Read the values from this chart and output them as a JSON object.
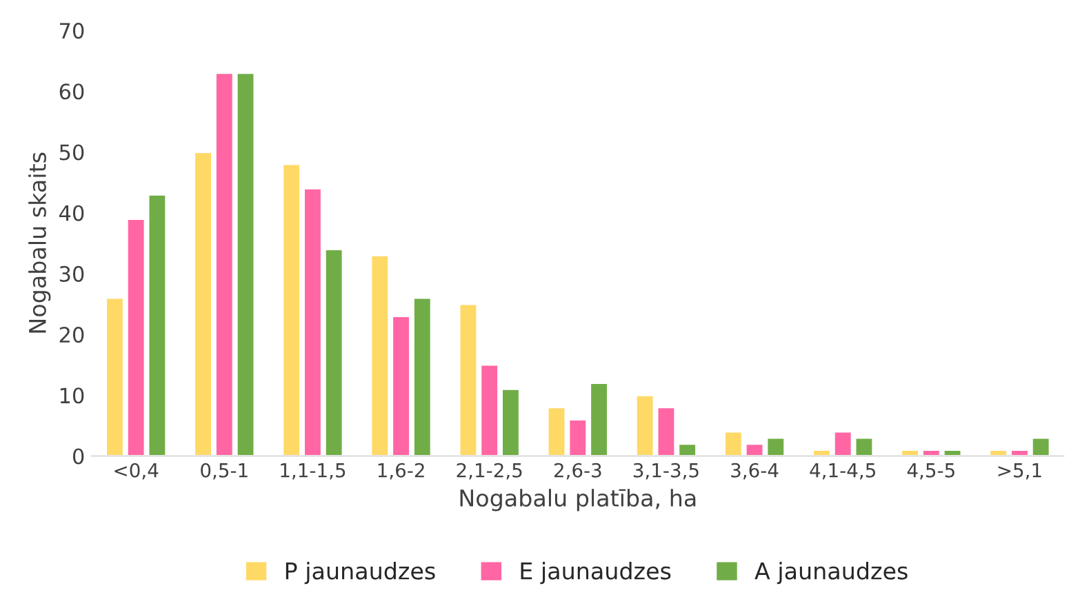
{
  "chart_data": {
    "type": "bar",
    "xlabel": "Nogabalu platība, ha",
    "ylabel": "Nogabalu skaits",
    "categories": [
      "<0,4",
      "0,5-1",
      "1,1-1,5",
      "1,6-2",
      "2,1-2,5",
      "2,6-3",
      "3,1-3,5",
      "3,6-4",
      "4,1-4,5",
      "4,5-5",
      ">5,1"
    ],
    "series": [
      {
        "name": "P jaunaudzes",
        "color": "#ffd966",
        "values": [
          26,
          50,
          48,
          33,
          25,
          8,
          10,
          4,
          1,
          1,
          1
        ]
      },
      {
        "name": "E jaunaudzes",
        "color": "#ff66a3",
        "values": [
          39,
          63,
          44,
          23,
          15,
          6,
          8,
          2,
          4,
          1,
          1
        ]
      },
      {
        "name": "A jaunaudzes",
        "color": "#70ad47",
        "values": [
          43,
          63,
          34,
          26,
          11,
          12,
          2,
          3,
          3,
          1,
          3
        ]
      }
    ],
    "ylim": [
      0,
      70
    ],
    "yticks": [
      0,
      10,
      20,
      30,
      40,
      50,
      60,
      70
    ],
    "grid": false,
    "legend": "bottom"
  }
}
